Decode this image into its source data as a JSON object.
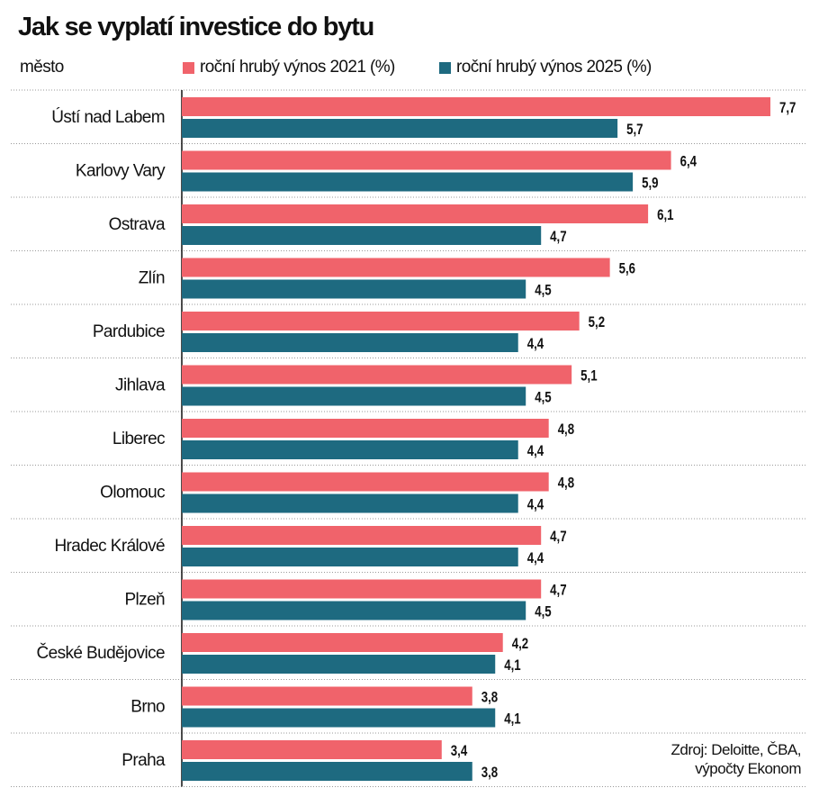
{
  "chart_data": {
    "type": "bar",
    "orientation": "horizontal",
    "title": "Jak se vyplatí investice do bytu",
    "category_header": "město",
    "categories": [
      "Ústí nad Labem",
      "Karlovy Vary",
      "Ostrava",
      "Zlín",
      "Pardubice",
      "Jihlava",
      "Liberec",
      "Olomouc",
      "Hradec Králové",
      "Plzeň",
      "České Budějovice",
      "Brno",
      "Praha"
    ],
    "series": [
      {
        "name": "roční hrubý výnos 2021 (%)",
        "color": "#f0636b",
        "values": [
          7.7,
          6.4,
          6.1,
          5.6,
          5.2,
          5.1,
          4.8,
          4.8,
          4.7,
          4.7,
          4.2,
          3.8,
          3.4
        ]
      },
      {
        "name": "roční hrubý výnos 2025 (%)",
        "color": "#1e6a80",
        "values": [
          5.7,
          5.9,
          4.7,
          4.5,
          4.4,
          4.5,
          4.4,
          4.4,
          4.4,
          4.5,
          4.1,
          4.1,
          3.8
        ]
      }
    ],
    "xlim": [
      0,
      7.7
    ],
    "grid": false,
    "legend_placement": "top",
    "data_labels": true,
    "decimal_separator": ",",
    "source": [
      "Zdroj: Deloitte, ČBA,",
      "výpočty Ekonom"
    ]
  }
}
